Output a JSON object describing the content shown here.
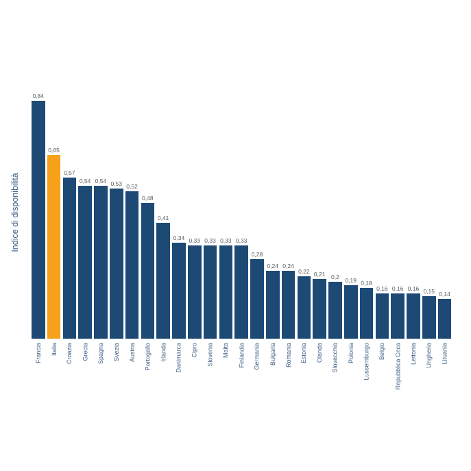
{
  "chart_data": {
    "type": "bar",
    "title": "",
    "xlabel": "",
    "ylabel": "Indice di disponibilità",
    "ylim": [
      0,
      0.9
    ],
    "grid": false,
    "legend": null,
    "categories": [
      "Francia",
      "Italia",
      "Croazia",
      "Grecia",
      "Spagna",
      "Svezia",
      "Austria",
      "Portogallo",
      "Irlanda",
      "Danimarca",
      "Cipro",
      "Slovenia",
      "Malta",
      "Finlandia",
      "Germania",
      "Bulgaria",
      "Romania",
      "Estonia",
      "Olanda",
      "Slovacchia",
      "Polonia",
      "Lussemburgo",
      "Belgio",
      "Repubblica Ceca",
      "Lettonia",
      "Ungheria",
      "Lituania"
    ],
    "values": [
      0.84,
      0.65,
      0.57,
      0.54,
      0.54,
      0.53,
      0.52,
      0.48,
      0.41,
      0.34,
      0.33,
      0.33,
      0.33,
      0.33,
      0.28,
      0.24,
      0.24,
      0.22,
      0.21,
      0.2,
      0.19,
      0.18,
      0.16,
      0.16,
      0.16,
      0.15,
      0.14
    ],
    "value_labels": [
      "0,84",
      "0,65",
      "0,57",
      "0,54",
      "0,54",
      "0,53",
      "0,52",
      "0,48",
      "0,41",
      "0,34",
      "0,33",
      "0,33",
      "0,33",
      "0,33",
      "0,28",
      "0,24",
      "0,24",
      "0,22",
      "0,21",
      "0,2",
      "0,19",
      "0,18",
      "0,16",
      "0,16",
      "0,16",
      "0,15",
      "0,14"
    ],
    "highlight": "Italia",
    "colors": {
      "default": "#1c4a75",
      "highlight": "#f7a11a"
    }
  }
}
